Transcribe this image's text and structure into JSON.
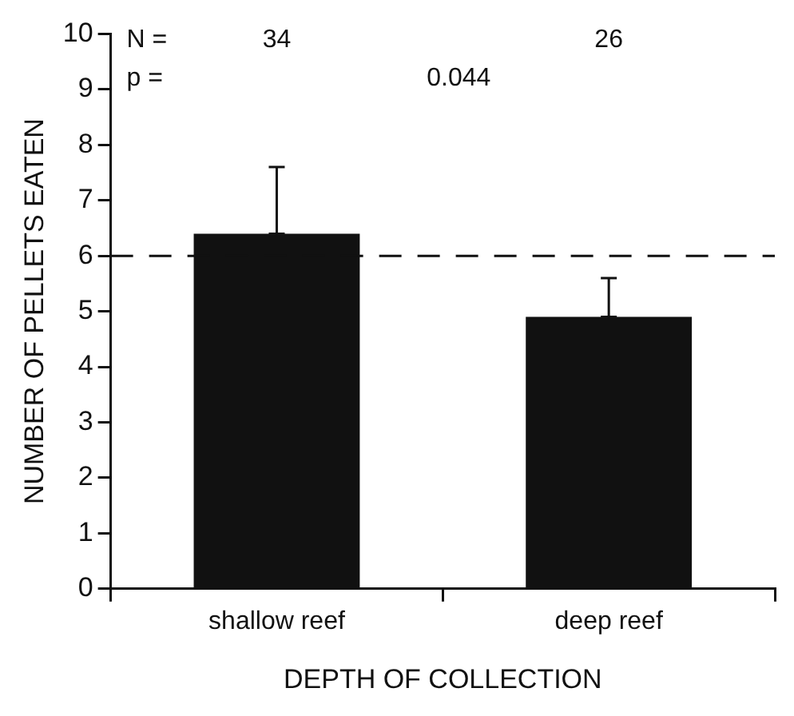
{
  "chart_data": {
    "type": "bar",
    "xlabel": "DEPTH OF COLLECTION",
    "ylabel": "NUMBER OF PELLETS EATEN",
    "categories": [
      "shallow reef",
      "deep reef"
    ],
    "values": [
      6.4,
      4.9
    ],
    "color": "#111111",
    "errors": [
      [
        6.4,
        7.6
      ],
      [
        4.9,
        5.6
      ]
    ],
    "ylim": [
      0,
      10
    ],
    "yticks": [
      0,
      1,
      2,
      3,
      4,
      5,
      6,
      7,
      8,
      9,
      10
    ],
    "grid": false,
    "ref_lines": [
      {
        "axis": "y",
        "value": 6,
        "line_style": "dashed",
        "color": "#111111"
      }
    ],
    "annotations": [
      "N =",
      "34",
      "26",
      "p =",
      "0.044"
    ]
  }
}
